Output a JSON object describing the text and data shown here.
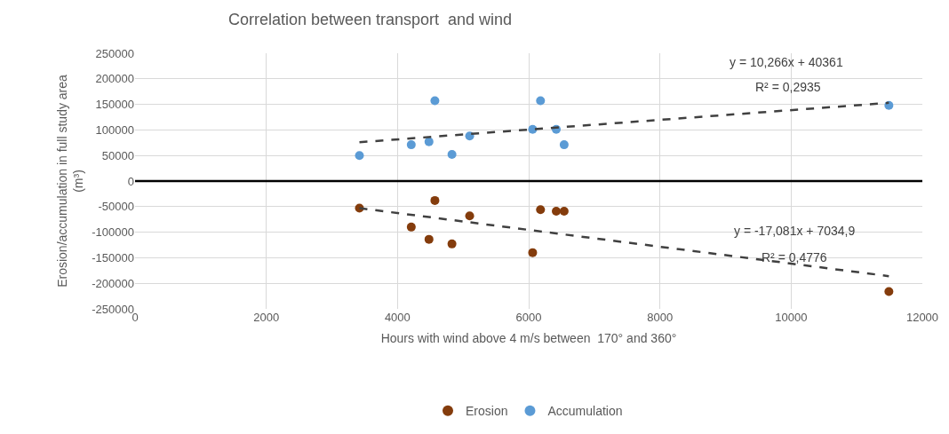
{
  "chart_data": {
    "type": "scatter",
    "title": "Correlation between transport  and wind",
    "xlabel": "Hours with wind above 4 m/s between  170° and 360°",
    "ylabel": "Erosion/accumulation in full study area\n(m³)",
    "xlim": [
      0,
      12000
    ],
    "xticks": [
      0,
      2000,
      4000,
      6000,
      8000,
      10000,
      12000
    ],
    "ylim": [
      -250000,
      250000
    ],
    "yticks": [
      -250000,
      -200000,
      -150000,
      -100000,
      -50000,
      0,
      50000,
      100000,
      150000,
      200000,
      250000
    ],
    "grid": true,
    "legend": "bottom",
    "marker": "circle",
    "series": [
      {
        "name": "Erosion",
        "color": "#843c0c",
        "x": [
          3420,
          4210,
          4480,
          4570,
          4830,
          5100,
          6060,
          6180,
          6420,
          6540,
          11490
        ],
        "values": [
          -53000,
          -90000,
          -114000,
          -38000,
          -123000,
          -68000,
          -140000,
          -56000,
          -59000,
          -59000,
          -216000
        ]
      },
      {
        "name": "Accumulation",
        "color": "#5b9bd5",
        "x": [
          3420,
          4210,
          4480,
          4570,
          4830,
          5100,
          6060,
          6180,
          6420,
          6540,
          11490
        ],
        "values": [
          50000,
          71000,
          77000,
          157000,
          52000,
          88000,
          101000,
          157000,
          101000,
          71000,
          148000
        ]
      },
      {
        "type": "line",
        "color": "#404040",
        "line_style": "dashed",
        "marker": "none",
        "x": [
          3420,
          11490
        ],
        "values": [
          76000,
          153000
        ]
      },
      {
        "type": "line",
        "color": "#404040",
        "line_style": "dashed",
        "marker": "none",
        "x": [
          3420,
          11490
        ],
        "values": [
          -53000,
          -186000
        ]
      }
    ],
    "ref_lines": [
      {
        "axis": "y",
        "value": 0,
        "color": "#000000"
      }
    ],
    "annotations": [
      "y = 10,266x + 40361",
      "R² = 0,2935",
      "y = -17,081x + 7034,9",
      "R² = 0,4776"
    ]
  }
}
